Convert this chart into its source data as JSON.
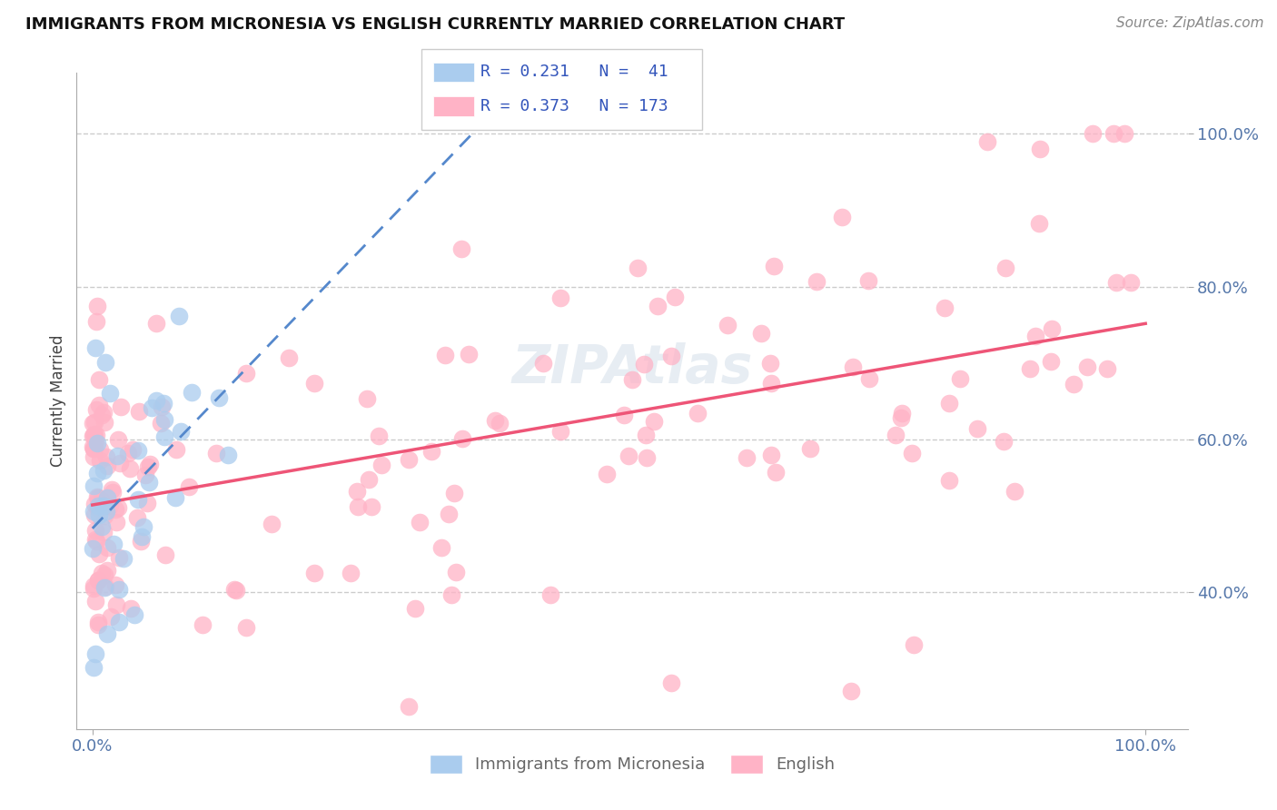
{
  "title": "IMMIGRANTS FROM MICRONESIA VS ENGLISH CURRENTLY MARRIED CORRELATION CHART",
  "source": "Source: ZipAtlas.com",
  "xlabel_blue": "Immigrants from Micronesia",
  "xlabel_pink": "English",
  "ylabel": "Currently Married",
  "R_blue": 0.231,
  "N_blue": 41,
  "R_pink": 0.373,
  "N_pink": 173,
  "blue_color": "#AACCEE",
  "pink_color": "#FFB3C6",
  "trend_blue_color": "#5588CC",
  "trend_pink_color": "#EE5577",
  "legend_box_blue": "#AACCEE",
  "legend_box_pink": "#FFB3C6",
  "legend_text_color": "#3355BB",
  "axis_label_color": "#5577AA",
  "title_color": "#111111",
  "background_color": "#FFFFFF",
  "grid_color": "#CCCCCC",
  "watermark_color": "#BBCCDD",
  "ytick_vals": [
    0.4,
    0.6,
    0.8,
    1.0
  ],
  "ytick_labels": [
    "40.0%",
    "60.0%",
    "80.0%",
    "100.0%"
  ],
  "xtick_vals": [
    0.0,
    1.0
  ],
  "xtick_labels": [
    "0.0%",
    "100.0%"
  ],
  "y_min": 0.22,
  "y_max": 1.08,
  "x_min": -0.015,
  "x_max": 1.04
}
